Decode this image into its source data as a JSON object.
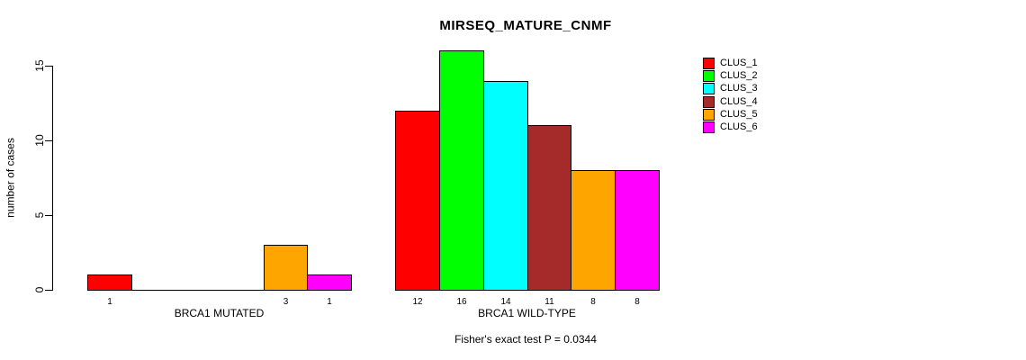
{
  "chart_data": {
    "type": "bar",
    "title": "MIRSEQ_MATURE_CNMF",
    "ylabel": "number of cases",
    "ylim": [
      0,
      16
    ],
    "yticks": [
      0,
      5,
      10,
      15
    ],
    "grid": false,
    "legend_position": "right-margin",
    "categories": [
      "BRCA1 MUTATED",
      "BRCA1 WILD-TYPE"
    ],
    "series": [
      {
        "name": "CLUS_1",
        "color": "#FF0000",
        "values": [
          1,
          12
        ]
      },
      {
        "name": "CLUS_2",
        "color": "#00FF00",
        "values": [
          0,
          16
        ]
      },
      {
        "name": "CLUS_3",
        "color": "#00FFFF",
        "values": [
          0,
          14
        ]
      },
      {
        "name": "CLUS_4",
        "color": "#A52A2A",
        "values": [
          0,
          11
        ]
      },
      {
        "name": "CLUS_5",
        "color": "#FFA500",
        "values": [
          3,
          8
        ]
      },
      {
        "name": "CLUS_6",
        "color": "#FF00FF",
        "values": [
          1,
          8
        ]
      }
    ],
    "bar_value_labels": {
      "BRCA1 MUTATED": [
        "1",
        "",
        "",
        "",
        "3",
        "1"
      ],
      "BRCA1 WILD-TYPE": [
        "12",
        "16",
        "14",
        "11",
        "8",
        "8"
      ]
    },
    "annotation": "Fisher's exact test P = 0.0344"
  }
}
